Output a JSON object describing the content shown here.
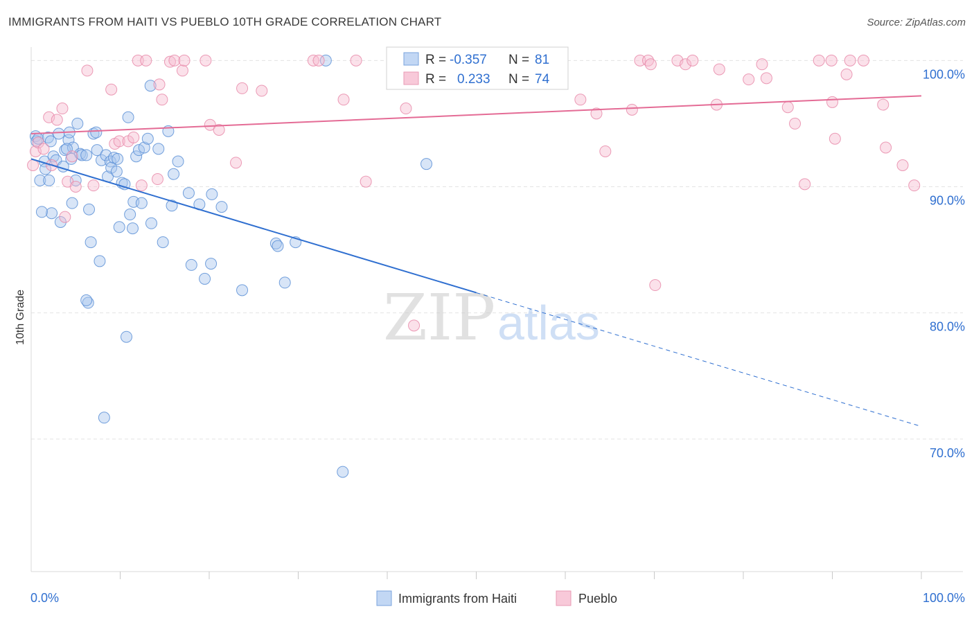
{
  "header": {
    "title": "IMMIGRANTS FROM HAITI VS PUEBLO 10TH GRADE CORRELATION CHART",
    "source": "Source: ZipAtlas.com"
  },
  "watermark": {
    "zip": "ZIP",
    "atlas": "atlas"
  },
  "colors": {
    "haiti_fill": "#a9c6ee",
    "haiti_stroke": "#5b8fd6",
    "haiti_line": "#2f6fd0",
    "pueblo_fill": "#f6bcd0",
    "pueblo_stroke": "#e78aa9",
    "pueblo_line": "#e46b95",
    "value_text": "#2f6fd0",
    "grid": "#e3e3e3"
  },
  "legend_box": {
    "rows": [
      {
        "r_label": "R =",
        "r_value": "-0.357",
        "n_label": "N =",
        "n_value": "81"
      },
      {
        "r_label": "R =",
        "r_value": "0.233",
        "n_label": "N =",
        "n_value": "74"
      }
    ]
  },
  "chart_data": {
    "type": "scatter",
    "title": "IMMIGRANTS FROM HAITI VS PUEBLO 10TH GRADE CORRELATION CHART",
    "xlabel": "",
    "ylabel": "10th Grade",
    "xlim": [
      0,
      100
    ],
    "ylim": [
      59.5,
      101.5
    ],
    "x_tick_labels": [
      "0.0%",
      "100.0%"
    ],
    "y_ticks": [
      70,
      80,
      90,
      100
    ],
    "y_tick_labels": [
      "70.0%",
      "80.0%",
      "90.0%",
      "100.0%"
    ],
    "grid": true,
    "legend": [
      "Immigrants from Haiti",
      "Pueblo"
    ],
    "series": [
      {
        "name": "Immigrants from Haiti",
        "r": -0.357,
        "n": 81,
        "trend": {
          "x0": 0,
          "y0": 92.2,
          "x1": 100,
          "y1": 71.0,
          "solid_until_x": 50
        },
        "points": [
          [
            0.5,
            94.0
          ],
          [
            0.6,
            93.6
          ],
          [
            0.8,
            93.8
          ],
          [
            1.0,
            90.5
          ],
          [
            1.5,
            92.0
          ],
          [
            1.6,
            91.4
          ],
          [
            1.9,
            93.9
          ],
          [
            2.2,
            93.6
          ],
          [
            2.3,
            87.9
          ],
          [
            2.5,
            92.4
          ],
          [
            2.8,
            92.1
          ],
          [
            3.1,
            94.2
          ],
          [
            3.3,
            87.2
          ],
          [
            3.6,
            91.6
          ],
          [
            3.8,
            92.9
          ],
          [
            4.2,
            93.7
          ],
          [
            4.3,
            94.3
          ],
          [
            4.5,
            92.2
          ],
          [
            4.6,
            88.7
          ],
          [
            4.7,
            93.1
          ],
          [
            5.0,
            90.5
          ],
          [
            5.2,
            95.0
          ],
          [
            5.5,
            92.6
          ],
          [
            5.7,
            92.5
          ],
          [
            6.2,
            92.5
          ],
          [
            6.5,
            88.2
          ],
          [
            6.7,
            85.6
          ],
          [
            7.0,
            94.2
          ],
          [
            7.4,
            92.9
          ],
          [
            7.7,
            84.1
          ],
          [
            7.9,
            92.1
          ],
          [
            8.2,
            71.7
          ],
          [
            8.4,
            92.5
          ],
          [
            8.6,
            90.8
          ],
          [
            8.9,
            92.0
          ],
          [
            9.0,
            91.5
          ],
          [
            9.3,
            92.3
          ],
          [
            9.6,
            91.2
          ],
          [
            9.9,
            86.8
          ],
          [
            10.2,
            90.3
          ],
          [
            10.5,
            90.2
          ],
          [
            10.9,
            95.5
          ],
          [
            11.1,
            87.8
          ],
          [
            11.5,
            88.8
          ],
          [
            11.8,
            92.4
          ],
          [
            12.1,
            92.9
          ],
          [
            12.4,
            88.7
          ],
          [
            12.7,
            93.1
          ],
          [
            13.1,
            93.8
          ],
          [
            13.5,
            87.1
          ],
          [
            14.3,
            93.0
          ],
          [
            14.8,
            85.6
          ],
          [
            15.4,
            94.4
          ],
          [
            15.8,
            88.5
          ],
          [
            16.0,
            91.0
          ],
          [
            16.5,
            92.0
          ],
          [
            17.7,
            89.5
          ],
          [
            18.0,
            83.8
          ],
          [
            18.9,
            88.6
          ],
          [
            19.5,
            82.7
          ],
          [
            20.2,
            83.9
          ],
          [
            20.3,
            89.4
          ],
          [
            21.4,
            88.4
          ],
          [
            23.7,
            81.8
          ],
          [
            27.5,
            85.5
          ],
          [
            27.7,
            85.3
          ],
          [
            28.5,
            82.4
          ],
          [
            29.7,
            85.6
          ],
          [
            33.1,
            100.0
          ],
          [
            35.0,
            67.4
          ],
          [
            44.4,
            91.8
          ],
          [
            13.4,
            98.0
          ],
          [
            10.7,
            78.1
          ],
          [
            11.4,
            86.7
          ],
          [
            6.4,
            80.8
          ],
          [
            6.2,
            81.0
          ],
          [
            7.3,
            94.3
          ],
          [
            9.7,
            92.2
          ],
          [
            4.0,
            93.0
          ],
          [
            2.0,
            90.5
          ],
          [
            1.2,
            88.0
          ]
        ]
      },
      {
        "name": "Pueblo",
        "r": 0.233,
        "n": 74,
        "trend": {
          "x0": 0,
          "y0": 94.2,
          "x1": 100,
          "y1": 97.2
        },
        "points": [
          [
            0.2,
            91.7
          ],
          [
            0.5,
            92.8
          ],
          [
            0.8,
            93.5
          ],
          [
            1.4,
            93.0
          ],
          [
            2.0,
            95.5
          ],
          [
            2.3,
            91.7
          ],
          [
            2.9,
            95.3
          ],
          [
            3.5,
            96.2
          ],
          [
            3.8,
            87.6
          ],
          [
            4.1,
            90.4
          ],
          [
            4.6,
            92.4
          ],
          [
            5.0,
            90.0
          ],
          [
            6.3,
            99.2
          ],
          [
            7.0,
            90.1
          ],
          [
            9.0,
            97.7
          ],
          [
            9.4,
            93.4
          ],
          [
            9.9,
            93.6
          ],
          [
            10.9,
            93.6
          ],
          [
            11.5,
            93.9
          ],
          [
            12.0,
            100.0
          ],
          [
            12.4,
            90.1
          ],
          [
            12.9,
            100.0
          ],
          [
            14.2,
            90.6
          ],
          [
            14.4,
            98.1
          ],
          [
            14.7,
            96.9
          ],
          [
            15.6,
            99.9
          ],
          [
            16.1,
            100.0
          ],
          [
            17.0,
            99.2
          ],
          [
            17.2,
            100.0
          ],
          [
            19.6,
            100.0
          ],
          [
            20.1,
            94.9
          ],
          [
            21.1,
            94.5
          ],
          [
            23.0,
            91.9
          ],
          [
            23.7,
            97.8
          ],
          [
            25.9,
            97.6
          ],
          [
            31.7,
            100.0
          ],
          [
            32.3,
            100.0
          ],
          [
            35.1,
            96.9
          ],
          [
            36.5,
            100.0
          ],
          [
            37.6,
            90.4
          ],
          [
            42.1,
            96.2
          ],
          [
            43.0,
            79.0
          ],
          [
            48.0,
            100.0
          ],
          [
            48.5,
            100.0
          ],
          [
            50.4,
            100.0
          ],
          [
            61.7,
            96.9
          ],
          [
            63.5,
            95.8
          ],
          [
            64.5,
            92.8
          ],
          [
            67.5,
            96.1
          ],
          [
            68.4,
            100.0
          ],
          [
            69.3,
            100.0
          ],
          [
            69.6,
            99.7
          ],
          [
            70.1,
            82.2
          ],
          [
            72.6,
            100.0
          ],
          [
            73.5,
            99.7
          ],
          [
            74.3,
            100.0
          ],
          [
            77.0,
            96.5
          ],
          [
            77.3,
            99.3
          ],
          [
            80.6,
            98.5
          ],
          [
            82.1,
            99.7
          ],
          [
            82.6,
            98.6
          ],
          [
            85.0,
            96.3
          ],
          [
            85.8,
            95.0
          ],
          [
            86.9,
            90.2
          ],
          [
            88.5,
            100.0
          ],
          [
            89.9,
            100.0
          ],
          [
            90.0,
            96.7
          ],
          [
            90.3,
            93.8
          ],
          [
            91.6,
            98.9
          ],
          [
            92.0,
            100.0
          ],
          [
            93.5,
            100.0
          ],
          [
            95.7,
            96.5
          ],
          [
            96.0,
            93.1
          ],
          [
            97.9,
            91.7
          ],
          [
            99.2,
            90.1
          ]
        ]
      }
    ]
  },
  "bottom_legend": {
    "items": [
      "Immigrants from Haiti",
      "Pueblo"
    ]
  }
}
